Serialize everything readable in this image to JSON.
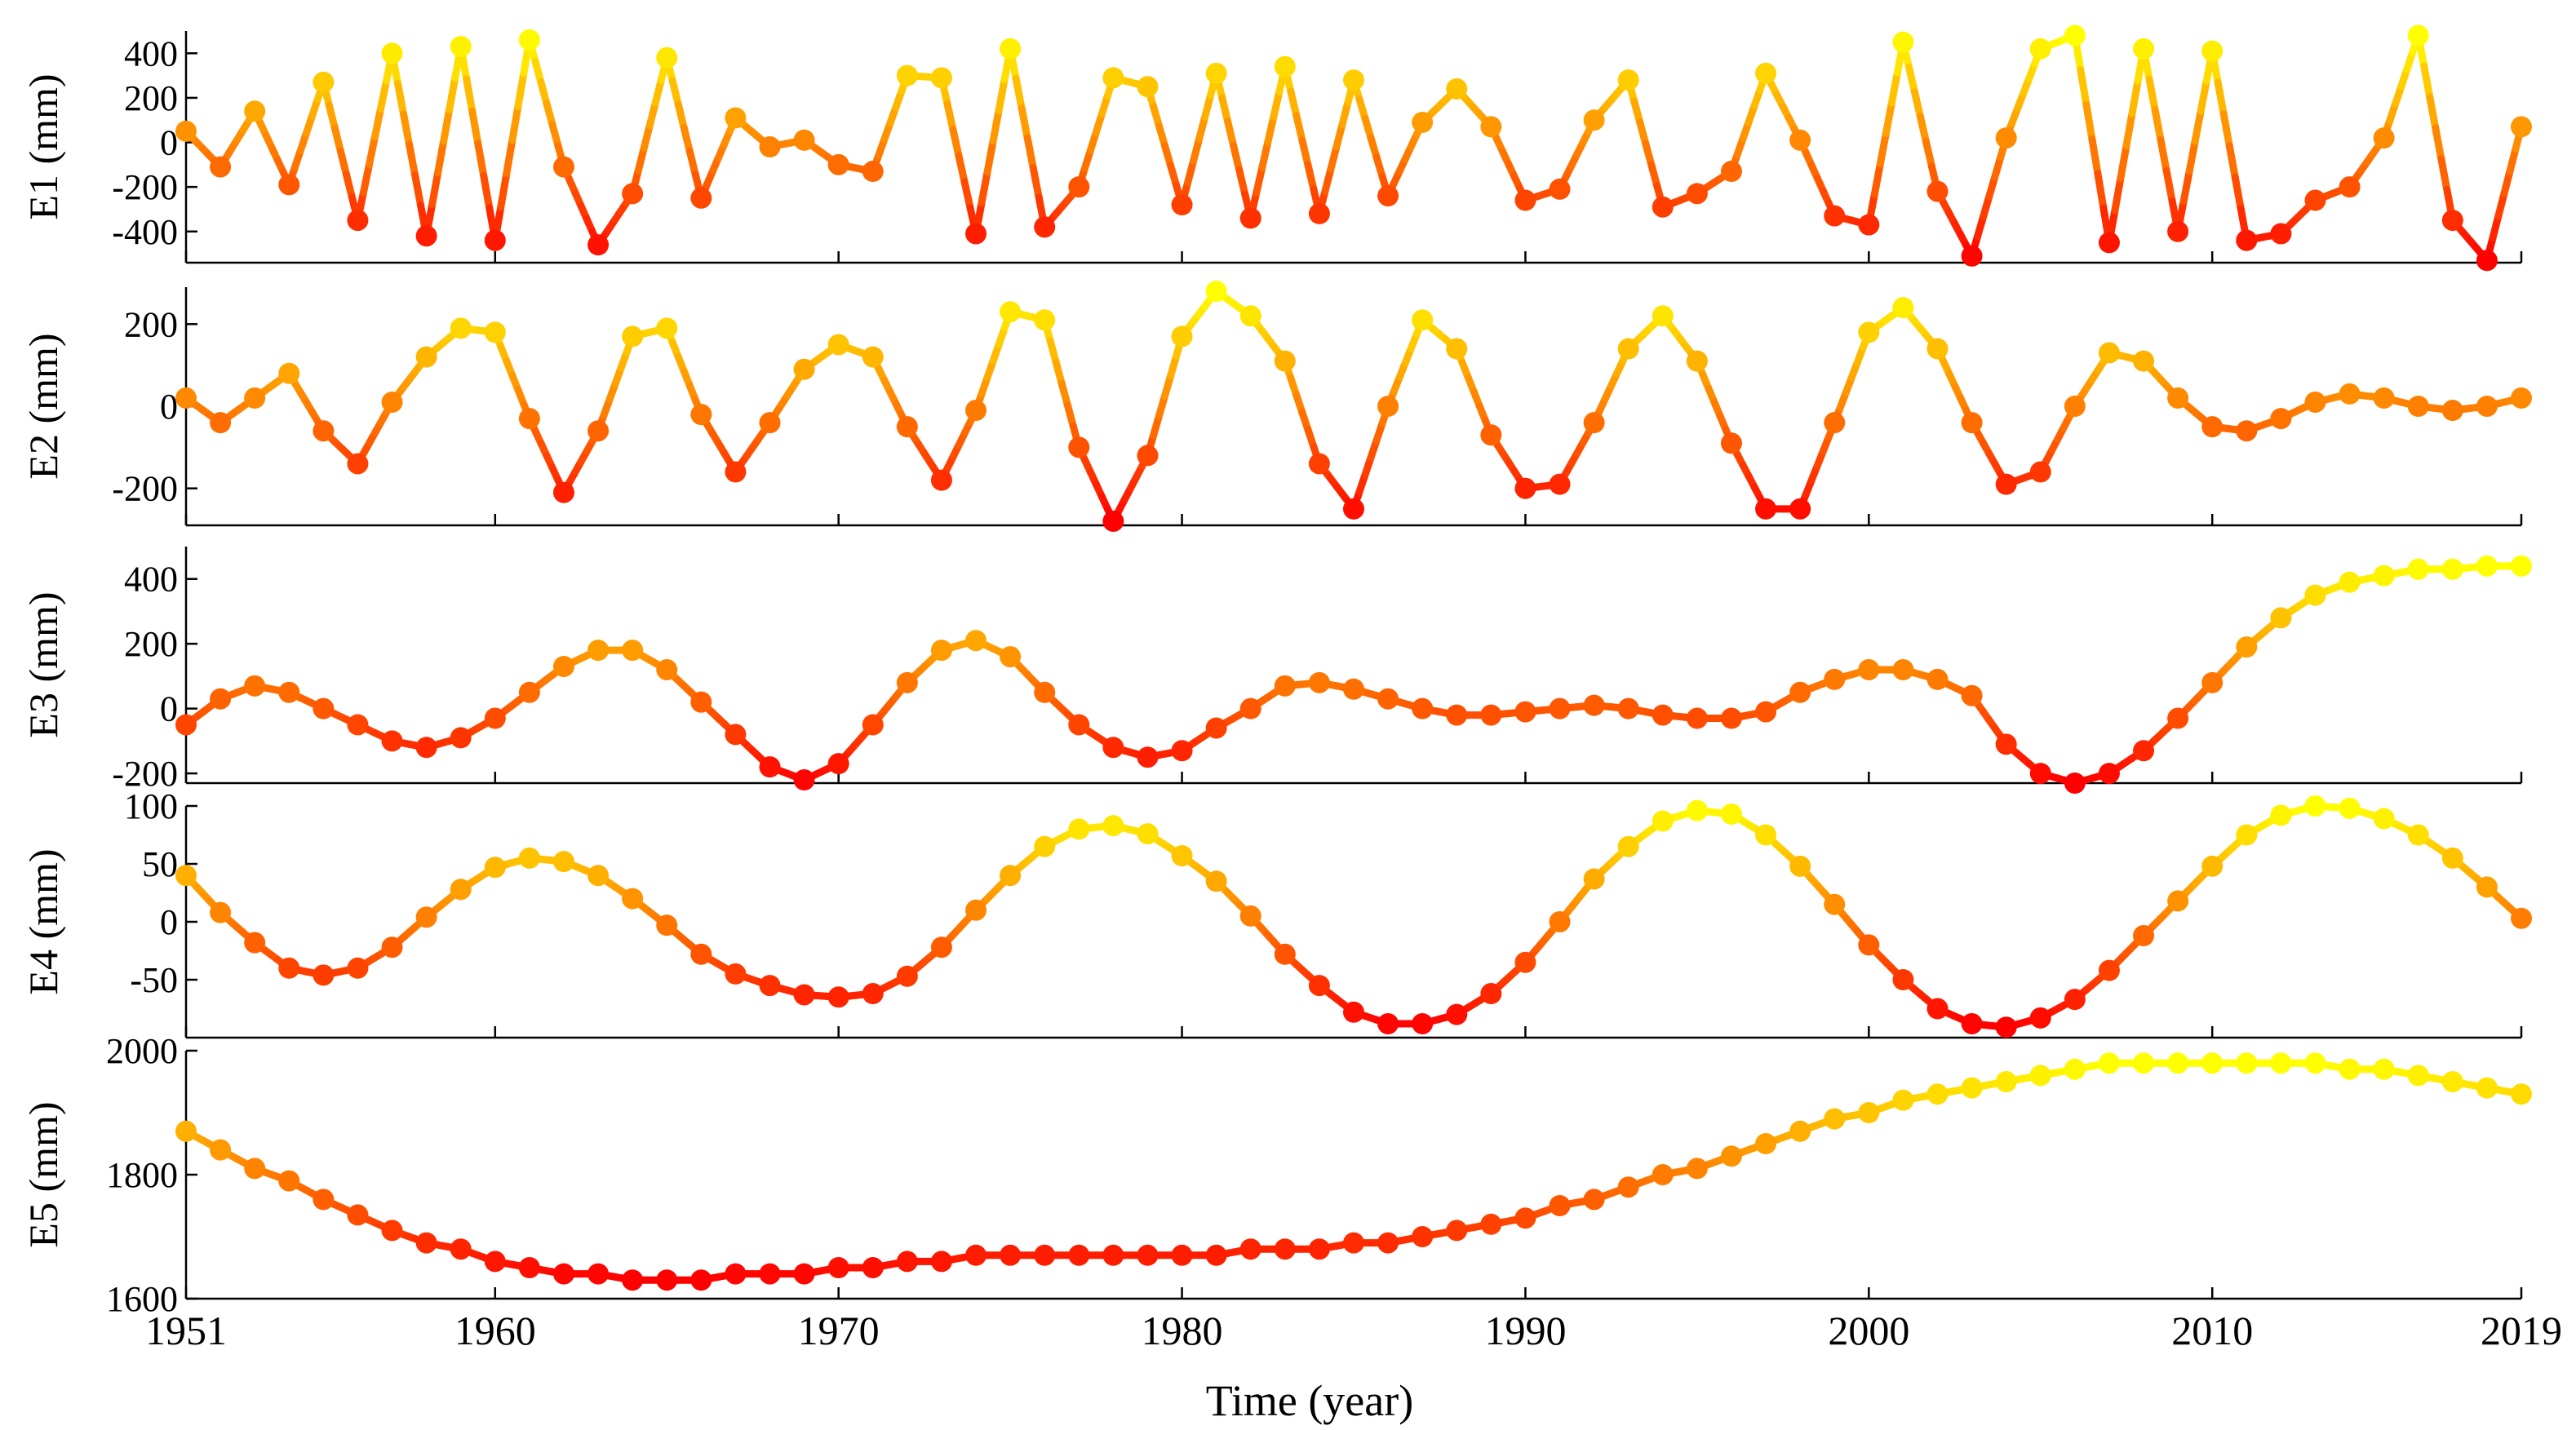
{
  "chart_data": {
    "type": "line",
    "x_label": "Time (year)",
    "years": [
      1951,
      1952,
      1953,
      1954,
      1955,
      1956,
      1957,
      1958,
      1959,
      1960,
      1961,
      1962,
      1963,
      1964,
      1965,
      1966,
      1967,
      1968,
      1969,
      1970,
      1971,
      1972,
      1973,
      1974,
      1975,
      1976,
      1977,
      1978,
      1979,
      1980,
      1981,
      1982,
      1983,
      1984,
      1985,
      1986,
      1987,
      1988,
      1989,
      1990,
      1991,
      1992,
      1993,
      1994,
      1995,
      1996,
      1997,
      1998,
      1999,
      2000,
      2001,
      2002,
      2003,
      2004,
      2005,
      2006,
      2007,
      2008,
      2009,
      2010,
      2011,
      2012,
      2013,
      2014,
      2015,
      2016,
      2017,
      2018,
      2019
    ],
    "x_ticks": [
      "1951",
      "1960",
      "1970",
      "1980",
      "1990",
      "2000",
      "2010",
      "2019"
    ],
    "x_tick_values": [
      1951,
      1960,
      1970,
      1980,
      1990,
      2000,
      2010,
      2019
    ],
    "color_scale": [
      "#ff0000",
      "#ffff00"
    ],
    "panels": [
      {
        "name": "E1",
        "ylabel": "E1 (mm)",
        "ylim": [
          -540,
          500
        ],
        "yticks": [
          400,
          200,
          0,
          -200,
          -400
        ],
        "ytick_labels": [
          "400",
          "200",
          "0",
          "-200",
          "-400"
        ],
        "values": [
          50,
          -110,
          140,
          -190,
          270,
          -350,
          400,
          -420,
          430,
          -440,
          460,
          -110,
          -460,
          -230,
          380,
          -250,
          110,
          -20,
          10,
          -100,
          -130,
          300,
          290,
          -410,
          420,
          -380,
          -200,
          290,
          250,
          -280,
          310,
          -340,
          340,
          -320,
          280,
          -240,
          90,
          240,
          70,
          -260,
          -210,
          100,
          280,
          -290,
          -230,
          -130,
          310,
          10,
          -330,
          -370,
          450,
          -220,
          -510,
          20,
          420,
          480,
          -450,
          420,
          -400,
          410,
          -440,
          -410,
          -260,
          -200,
          20,
          480,
          -350,
          -530,
          70
        ]
      },
      {
        "name": "E2",
        "ylabel": "E2 (mm)",
        "ylim": [
          -290,
          290
        ],
        "yticks": [
          200,
          0,
          -200
        ],
        "ytick_labels": [
          "200",
          "0",
          "-200"
        ],
        "values": [
          20,
          -40,
          20,
          80,
          -60,
          -140,
          10,
          120,
          190,
          180,
          -30,
          -210,
          -60,
          170,
          190,
          -20,
          -160,
          -40,
          90,
          150,
          120,
          -50,
          -180,
          -10,
          230,
          210,
          -100,
          -280,
          -120,
          170,
          280,
          220,
          110,
          -140,
          -250,
          0,
          210,
          140,
          -70,
          -200,
          -190,
          -40,
          140,
          220,
          110,
          -90,
          -250,
          -250,
          -40,
          180,
          240,
          140,
          -40,
          -190,
          -160,
          0,
          130,
          110,
          20,
          -50,
          -60,
          -30,
          10,
          30,
          20,
          0,
          -10,
          0,
          20
        ]
      },
      {
        "name": "E3",
        "ylabel": "E3 (mm)",
        "ylim": [
          -230,
          500
        ],
        "yticks": [
          400,
          200,
          0,
          -200
        ],
        "ytick_labels": [
          "400",
          "200",
          "0",
          "-200"
        ],
        "values": [
          -50,
          30,
          70,
          50,
          0,
          -50,
          -100,
          -120,
          -90,
          -30,
          50,
          130,
          180,
          180,
          120,
          20,
          -80,
          -180,
          -220,
          -170,
          -50,
          80,
          180,
          210,
          160,
          50,
          -50,
          -120,
          -150,
          -130,
          -60,
          0,
          70,
          80,
          60,
          30,
          0,
          -20,
          -20,
          -10,
          0,
          10,
          0,
          -20,
          -30,
          -30,
          -10,
          50,
          90,
          120,
          120,
          90,
          40,
          -110,
          -200,
          -230,
          -200,
          -130,
          -30,
          80,
          190,
          280,
          350,
          390,
          410,
          430,
          430,
          440,
          440
        ]
      },
      {
        "name": "E4",
        "ylabel": "E4 (mm)",
        "ylim": [
          -100,
          100
        ],
        "yticks": [
          100,
          50,
          0,
          -50
        ],
        "ytick_labels": [
          "100",
          "50",
          "0",
          "-50"
        ],
        "values": [
          40,
          8,
          -18,
          -40,
          -46,
          -40,
          -22,
          4,
          28,
          47,
          55,
          52,
          40,
          20,
          -3,
          -28,
          -45,
          -55,
          -63,
          -65,
          -62,
          -47,
          -22,
          10,
          40,
          65,
          80,
          83,
          76,
          57,
          35,
          5,
          -28,
          -55,
          -78,
          -88,
          -88,
          -80,
          -62,
          -35,
          0,
          37,
          65,
          87,
          96,
          93,
          75,
          48,
          15,
          -20,
          -50,
          -75,
          -88,
          -91,
          -83,
          -67,
          -42,
          -12,
          18,
          48,
          75,
          92,
          100,
          98,
          89,
          75,
          55,
          30,
          3
        ]
      },
      {
        "name": "E5",
        "ylabel": "E5 (mm)",
        "ylim": [
          1600,
          2000
        ],
        "yticks": [
          2000,
          1800,
          1600
        ],
        "ytick_labels": [
          "2000",
          "1800",
          "1600"
        ],
        "values": [
          1870,
          1840,
          1810,
          1790,
          1760,
          1735,
          1710,
          1690,
          1680,
          1660,
          1650,
          1640,
          1640,
          1630,
          1630,
          1630,
          1640,
          1640,
          1640,
          1650,
          1650,
          1660,
          1660,
          1670,
          1670,
          1670,
          1670,
          1670,
          1670,
          1670,
          1670,
          1680,
          1680,
          1680,
          1690,
          1690,
          1700,
          1710,
          1720,
          1730,
          1750,
          1760,
          1780,
          1800,
          1810,
          1830,
          1850,
          1870,
          1890,
          1900,
          1920,
          1930,
          1940,
          1950,
          1960,
          1970,
          1980,
          1980,
          1980,
          1980,
          1980,
          1980,
          1980,
          1970,
          1970,
          1960,
          1950,
          1940,
          1930
        ]
      }
    ]
  }
}
